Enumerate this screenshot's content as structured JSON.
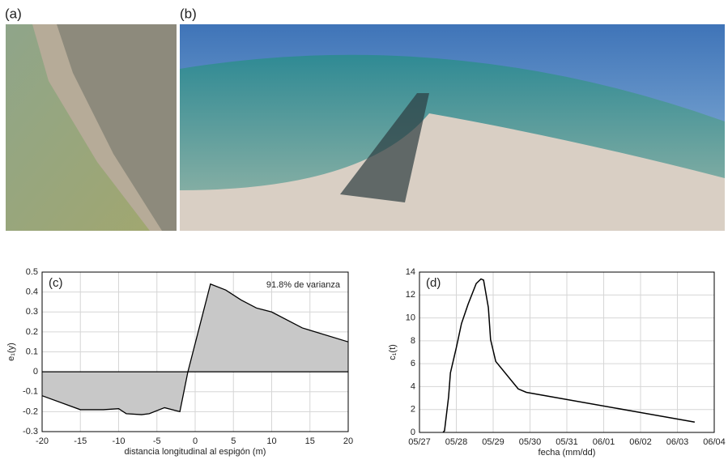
{
  "panels": {
    "a": "(a)",
    "b": "(b)"
  },
  "chart_data": [
    {
      "type": "area",
      "label": "(c)",
      "annotation": "91.8% de varianza",
      "xlabel": "distancia longitudinal al espigón (m)",
      "ylabel": "e₁(y)",
      "x": [
        -20,
        -15,
        -12,
        -10,
        -9,
        -7,
        -6,
        -4,
        -2,
        -0.95,
        2,
        4,
        6,
        8,
        10,
        14,
        20
      ],
      "values": [
        -0.12,
        -0.19,
        -0.19,
        -0.185,
        -0.21,
        -0.215,
        -0.21,
        -0.18,
        -0.2,
        0,
        0.44,
        0.41,
        0.36,
        0.32,
        0.3,
        0.22,
        0.15
      ],
      "color": "#c8c8c8",
      "xlim": [
        -20,
        20
      ],
      "xticks": [
        -20,
        -15,
        -10,
        -5,
        0,
        5,
        10,
        15,
        20
      ],
      "ylim": [
        -0.3,
        0.5
      ],
      "yticks": [
        -0.3,
        -0.2,
        -0.1,
        0,
        0.1,
        0.2,
        0.3,
        0.4,
        0.5
      ],
      "grid": true
    },
    {
      "type": "line",
      "label": "(d)",
      "xlabel": "fecha (mm/dd)",
      "ylabel": "c₁(t)",
      "x": [
        0.64,
        0.68,
        0.79,
        0.84,
        1.0,
        1.14,
        1.32,
        1.54,
        1.67,
        1.74,
        1.87,
        1.93,
        2.07,
        2.68,
        2.9,
        7.47
      ],
      "values": [
        0,
        0.15,
        3.1,
        5.2,
        7.4,
        9.5,
        11.2,
        13.0,
        13.4,
        13.3,
        10.9,
        8.1,
        6.2,
        3.8,
        3.5,
        0.9
      ],
      "color": "#000000",
      "xlim": [
        0,
        8
      ],
      "xticks": [
        {
          "value": 0,
          "label": "05/27"
        },
        {
          "value": 1,
          "label": "05/28"
        },
        {
          "value": 2,
          "label": "05/29"
        },
        {
          "value": 3,
          "label": "05/30"
        },
        {
          "value": 4,
          "label": "05/31"
        },
        {
          "value": 5,
          "label": "06/01"
        },
        {
          "value": 6,
          "label": "06/02"
        },
        {
          "value": 7,
          "label": "06/03"
        },
        {
          "value": 8,
          "label": "06/04"
        }
      ],
      "ylim": [
        0,
        14
      ],
      "yticks": [
        0,
        2,
        4,
        6,
        8,
        10,
        12,
        14
      ],
      "grid": true
    }
  ]
}
